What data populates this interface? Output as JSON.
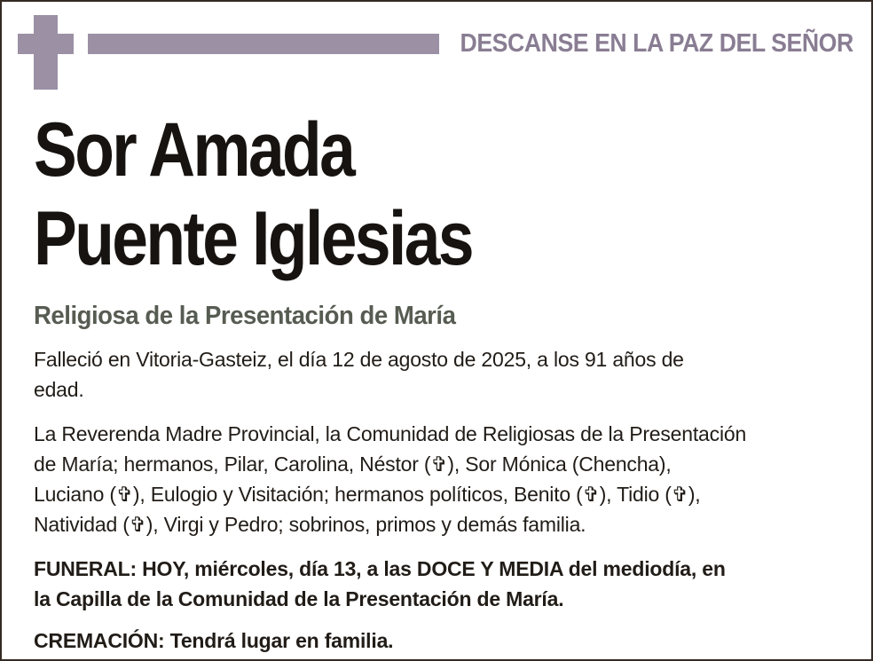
{
  "theme": {
    "ornament_purple": "#9b90a4",
    "motto_purple": "#897d93",
    "role_green": "#575c52",
    "name_black": "#171310",
    "body_dark": "#211c17",
    "frame_border": "#342b24",
    "background": "#ffffff"
  },
  "header": {
    "cross_icon": "latin-cross",
    "motto": "DESCANSE EN LA PAZ DEL SEÑOR"
  },
  "deceased": {
    "name": "Sor Amada\nPuente Iglesias",
    "role": "Religiosa de la Presentación de María",
    "death_place": "Vitoria-Gasteiz",
    "death_date": "12 de agosto de 2025",
    "age": "91"
  },
  "body": {
    "death_notice": "Falleció en Vitoria-Gasteiz, el día 12 de agosto de 2025, a los 91 años de\nedad.",
    "family_notice": "La Reverenda Madre Provincial, la Comunidad de Religiosas de la Presentación\nde María; hermanos, Pilar, Carolina, Néstor (✞), Sor Mónica (Chencha),\nLuciano (✞), Eulogio y Visitación; hermanos políticos, Benito (✞), Tidio (✞),\nNatividad (✞), Virgi y Pedro; sobrinos, primos y demás familia.",
    "funeral_notice": "FUNERAL: HOY, miércoles, día 13, a las DOCE Y MEDIA del mediodía, en\nla Capilla de la Comunidad de la Presentación de María.",
    "cremation_notice": "CREMACIÓN: Tendrá lugar en familia."
  }
}
